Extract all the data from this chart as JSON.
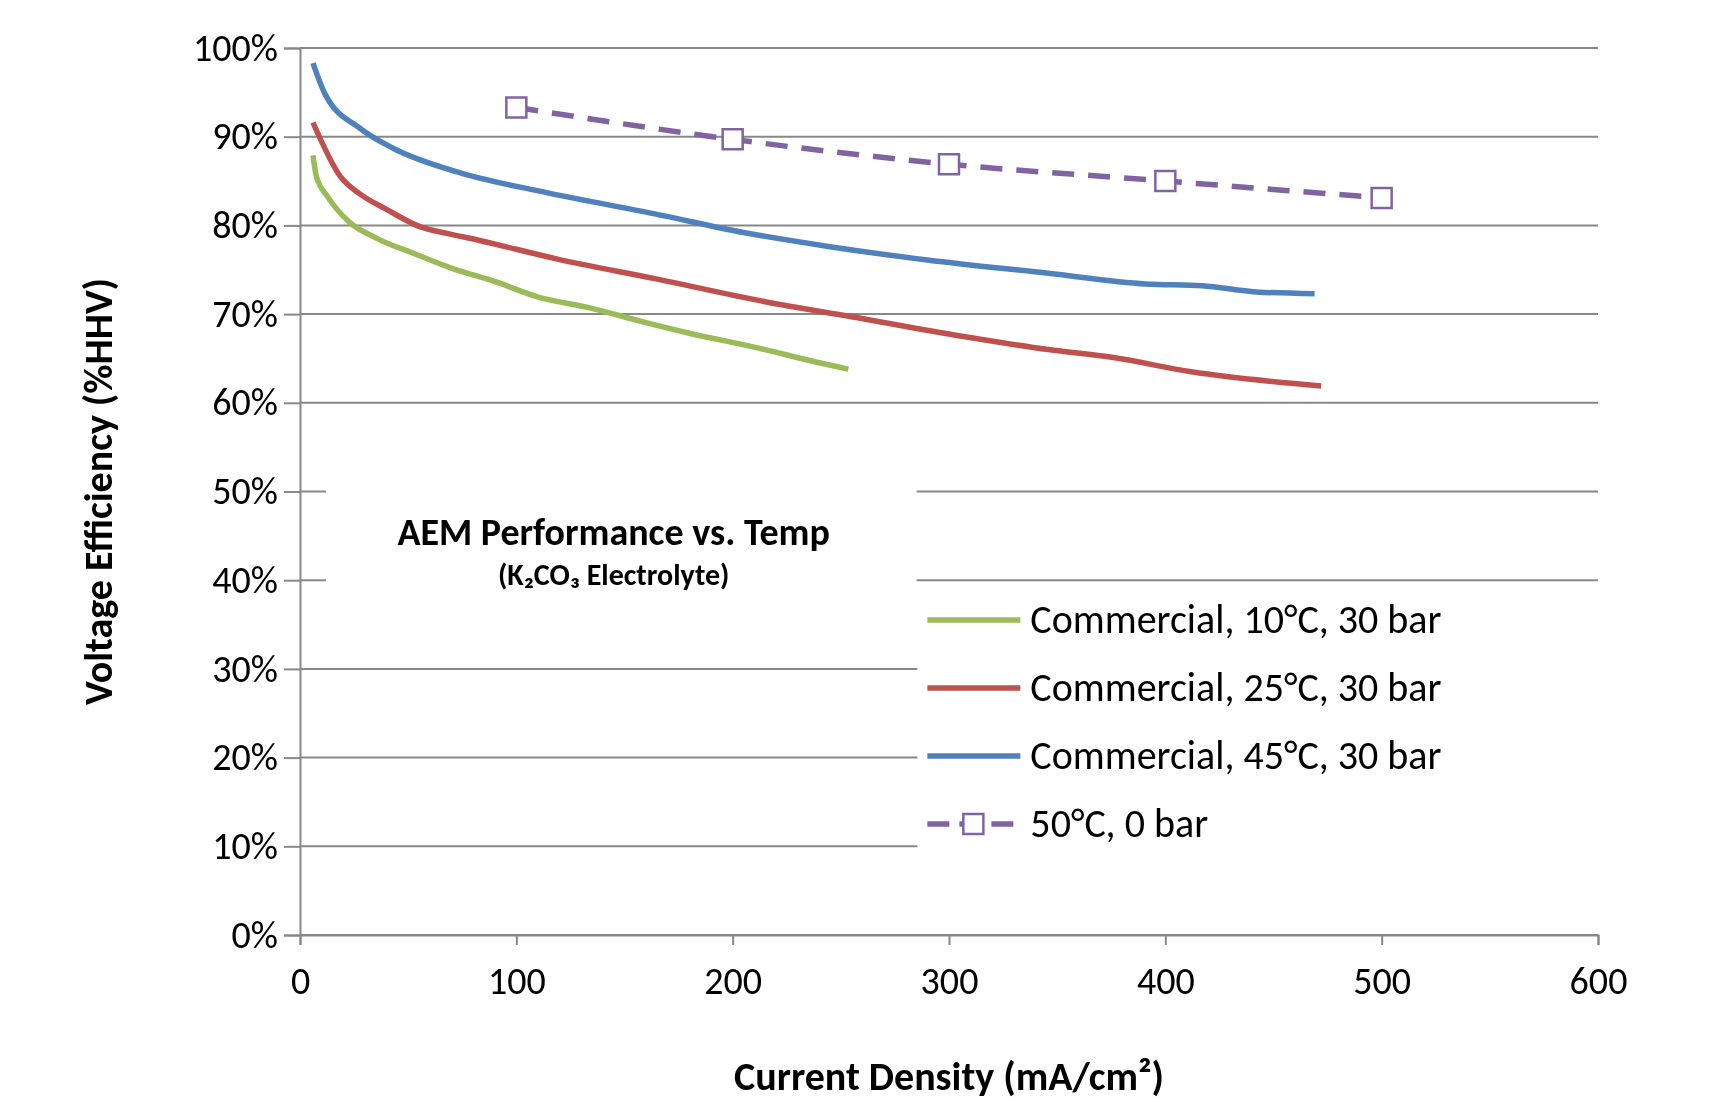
{
  "chart_data": {
    "type": "line",
    "title": "AEM Performance vs. Temp",
    "subtitle": "(K₂CO₃ Electrolyte)",
    "xlabel": "Current Density (mA/cm²)",
    "ylabel": "Voltage Efficiency (%HHV)",
    "xlim": [
      0,
      600
    ],
    "xticks": [
      0,
      100,
      200,
      300,
      400,
      500,
      600
    ],
    "ylim": [
      0,
      100
    ],
    "yticks": [
      {
        "value": 0,
        "label": "0%"
      },
      {
        "value": 10,
        "label": "10%"
      },
      {
        "value": 20,
        "label": "20%"
      },
      {
        "value": 30,
        "label": "30%"
      },
      {
        "value": 40,
        "label": "40%"
      },
      {
        "value": 50,
        "label": "50%"
      },
      {
        "value": 60,
        "label": "60%"
      },
      {
        "value": 70,
        "label": "70%"
      },
      {
        "value": 80,
        "label": "80%"
      },
      {
        "value": 90,
        "label": "90%"
      },
      {
        "value": 100,
        "label": "100%"
      }
    ],
    "grid": "y",
    "legend": "bottom right",
    "series": [
      {
        "name": "Commercial, 10°C, 30 bar",
        "color": "#9bbb59",
        "x": [
          6,
          7.6,
          12.6,
          22.7,
          35,
          53,
          71,
          91,
          109,
          134,
          159,
          179,
          215,
          235,
          253.5
        ],
        "values": [
          87.9,
          85.5,
          83.3,
          80.4,
          78.6,
          76.8,
          75.1,
          73.6,
          72.0,
          70.7,
          69.1,
          67.9,
          66.0,
          64.8,
          63.8
        ]
      },
      {
        "name": "Commercial, 25°C, 30 bar",
        "color": "#c0504d",
        "x": [
          6,
          18.7,
          28,
          40,
          56,
          68,
          83,
          119,
          164,
          215,
          255,
          306,
          346,
          376,
          412,
          472
        ],
        "values": [
          91.6,
          85.5,
          83.5,
          81.8,
          79.8,
          79.1,
          78.3,
          76.2,
          74.0,
          71.4,
          69.7,
          67.5,
          66.0,
          65.1,
          63.5,
          61.9
        ]
      },
      {
        "name": "Commercial, 45°C, 30 bar",
        "color": "#4f81bd",
        "x": [
          6,
          11.6,
          28,
          43,
          73,
          114,
          164,
          205,
          245,
          290,
          346,
          391,
          417,
          442,
          469
        ],
        "values": [
          98.3,
          94.8,
          90.9,
          88.7,
          86.0,
          83.7,
          81.3,
          79.2,
          77.6,
          76.1,
          74.6,
          73.4,
          73.2,
          72.5,
          72.3
        ]
      },
      {
        "name": "50°C, 0 bar",
        "color": "#8064a2",
        "x": [
          100,
          200,
          300,
          400,
          500
        ],
        "values": [
          93.3,
          89.7,
          86.9,
          85.0,
          83.1
        ],
        "marker": "square",
        "line_style": "dashed"
      }
    ]
  }
}
